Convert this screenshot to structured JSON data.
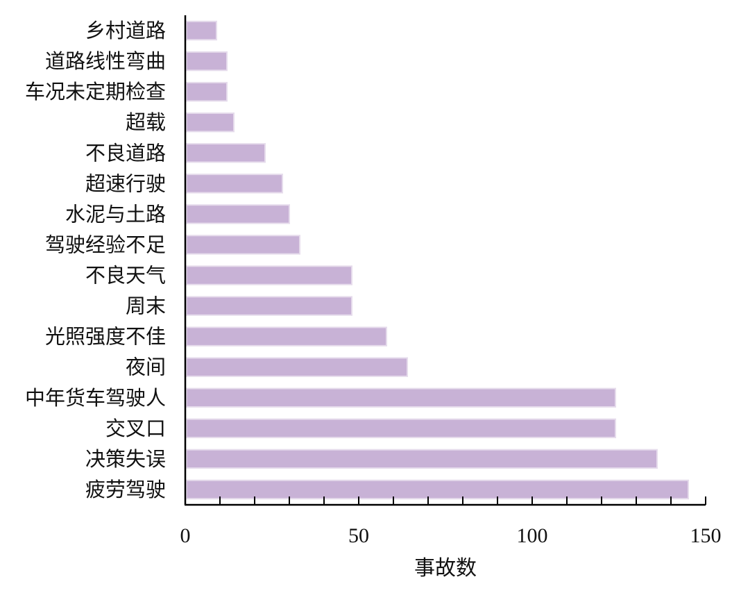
{
  "chart_data": {
    "type": "bar",
    "orientation": "horizontal",
    "categories": [
      "疲劳驾驶",
      "决策失误",
      "交叉口",
      "中年货车驾驶人",
      "夜间",
      "光照强度不佳",
      "周末",
      "不良天气",
      "驾驶经验不足",
      "水泥与土路",
      "超速行驶",
      "不良道路",
      "超载",
      "车况未定期检查",
      "道路线性弯曲",
      "乡村道路"
    ],
    "values": [
      145,
      136,
      124,
      124,
      64,
      58,
      48,
      48,
      33,
      30,
      28,
      23,
      14,
      12,
      12,
      9
    ],
    "xlabel": "事故数",
    "ylabel": "",
    "xlim": [
      0,
      150
    ],
    "xticks": [
      0,
      50,
      100,
      150
    ],
    "grid": false,
    "colors": {
      "bar": "#c8b2d6",
      "bar_edge": "#e6dcec"
    }
  }
}
